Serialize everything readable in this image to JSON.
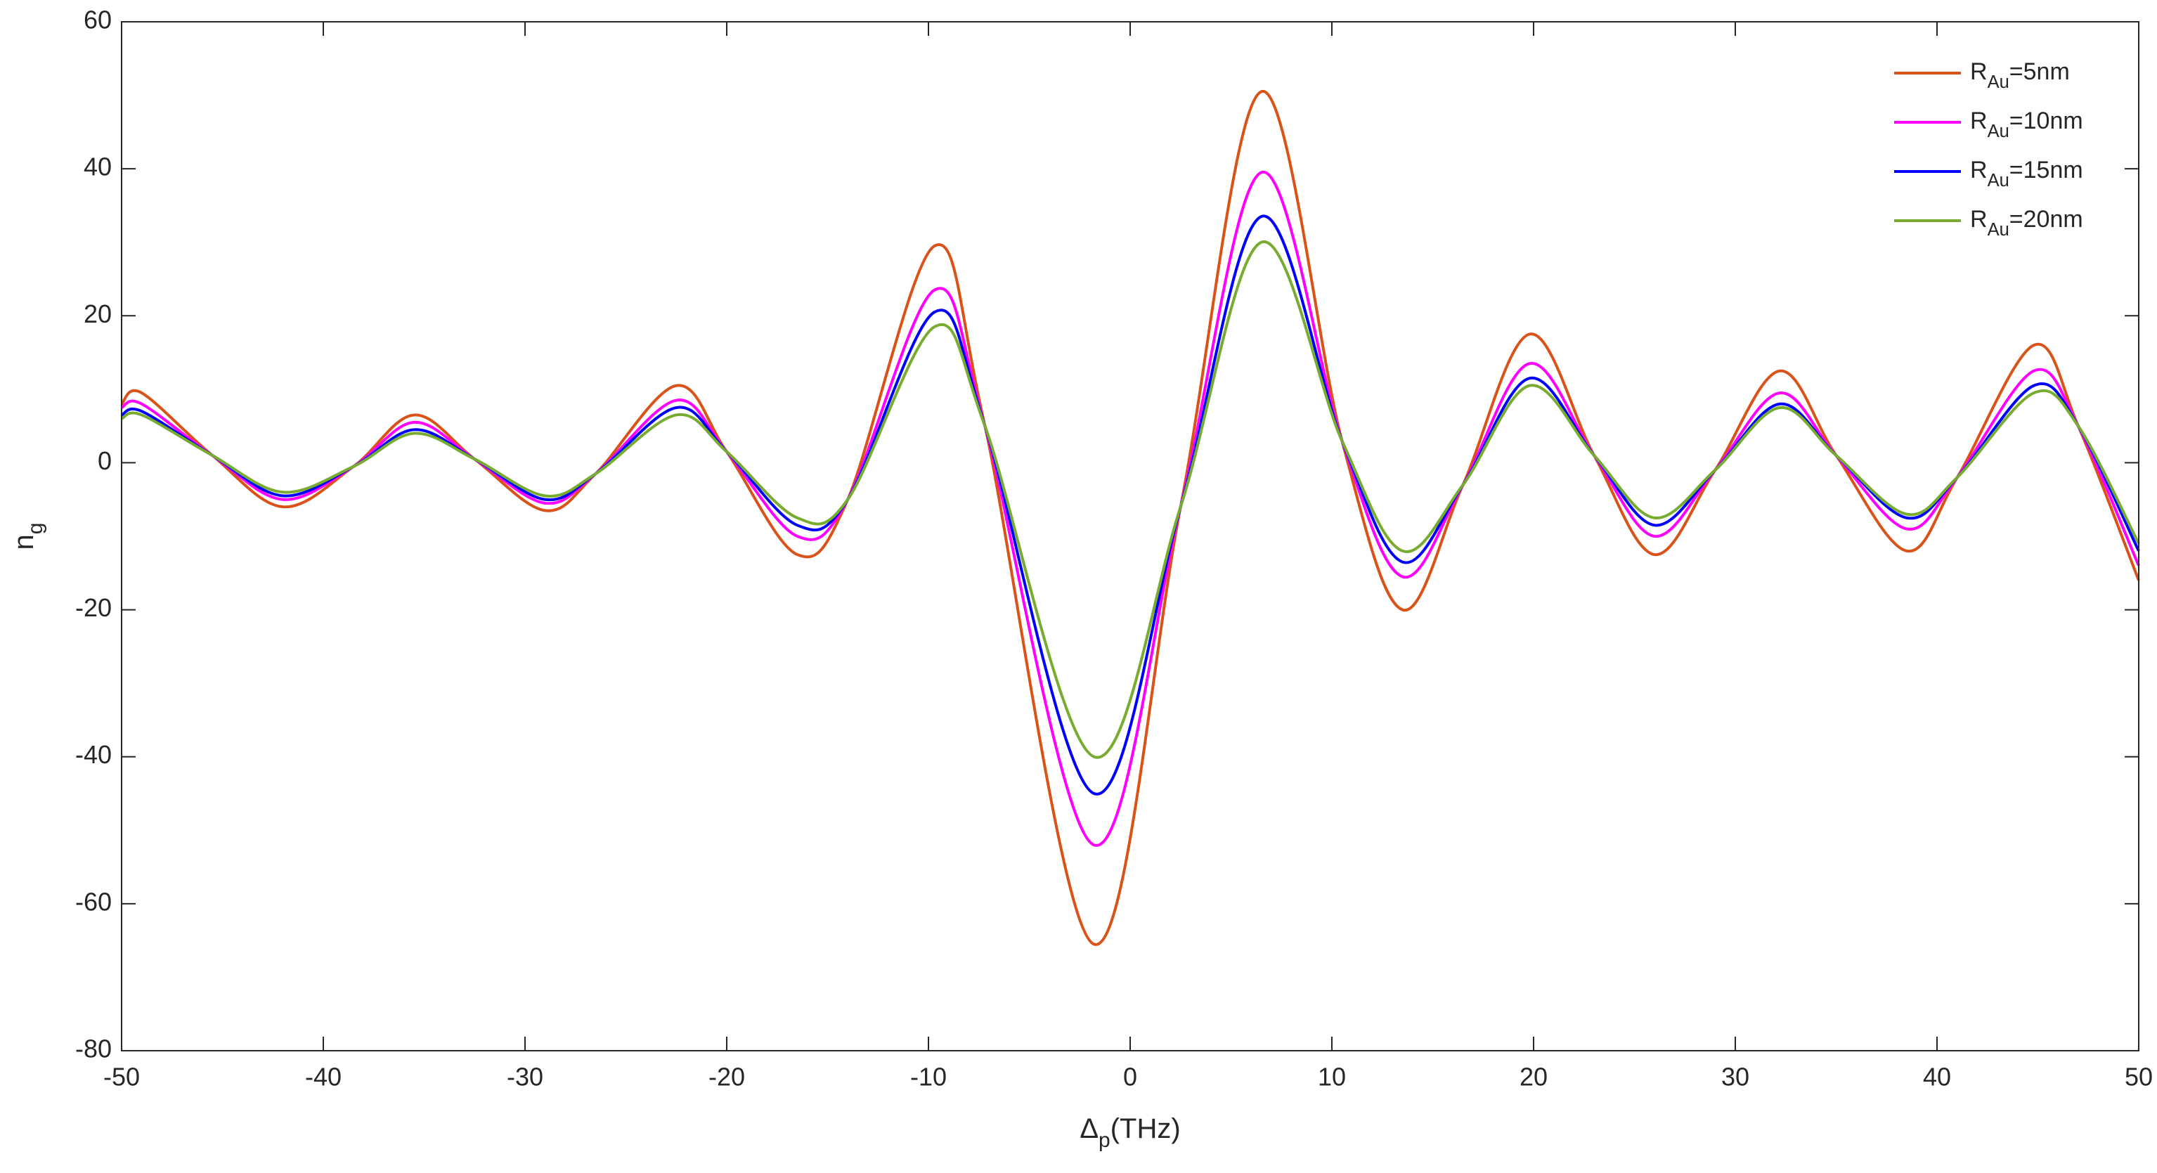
{
  "chart_data": {
    "type": "line",
    "xlabel": "Δp(THz)",
    "ylabel": "ng",
    "x": [
      -50,
      -49,
      -45.5,
      -42,
      -38.5,
      -35.5,
      -32.5,
      -29,
      -26.5,
      -22.5,
      -20,
      -16.5,
      -14,
      -9.7,
      -7.2,
      -1.8,
      2.5,
      6.5,
      10.5,
      13.5,
      16.5,
      19.8,
      23,
      26,
      29,
      32.2,
      35,
      38.5,
      41,
      44.8,
      47,
      50
    ],
    "series": [
      {
        "name": "RAu=5nm",
        "color": "#d95319",
        "values": [
          8,
          9.5,
          1,
          -6,
          -0.5,
          6.5,
          0.5,
          -6.5,
          -1.5,
          10.5,
          1.5,
          -12.5,
          -5,
          29.5,
          5,
          -65.5,
          -6,
          50.5,
          3,
          -20,
          -3,
          17.5,
          1,
          -12.5,
          -1,
          12.5,
          1,
          -12,
          -2,
          16,
          5,
          -16
        ]
      },
      {
        "name": "RAu=10nm",
        "color": "#ff00ff",
        "values": [
          7.5,
          8,
          1,
          -5,
          -0.5,
          5.5,
          0.5,
          -5.5,
          -1.5,
          8.5,
          1.5,
          -10,
          -5,
          23.5,
          5,
          -52,
          -6,
          39.5,
          3,
          -15.5,
          -3,
          13.5,
          1,
          -10,
          -1,
          9.5,
          1,
          -9,
          -2,
          12.5,
          5,
          -14
        ]
      },
      {
        "name": "RAu=15nm",
        "color": "#0000ff",
        "values": [
          6.5,
          7,
          1,
          -4.5,
          -0.5,
          4.5,
          0.5,
          -5,
          -1.5,
          7.5,
          1.5,
          -8.5,
          -5,
          20.5,
          5,
          -45,
          -6,
          33.5,
          3,
          -13.5,
          -3,
          11.5,
          1,
          -8.5,
          -1,
          8,
          1,
          -7.5,
          -2,
          10.5,
          5,
          -12
        ]
      },
      {
        "name": "RAu=20nm",
        "color": "#77ac30",
        "values": [
          6,
          6.5,
          1,
          -4,
          -0.5,
          4,
          0.5,
          -4.5,
          -1.5,
          6.5,
          1.5,
          -7.5,
          -5,
          18.5,
          5,
          -40,
          -6,
          30,
          3,
          -12,
          -3,
          10.5,
          1,
          -7.5,
          -1,
          7.5,
          1,
          -7,
          -2,
          9.5,
          5,
          -11
        ]
      }
    ],
    "xlim": [
      -50,
      50
    ],
    "xticks": [
      -50,
      -40,
      -30,
      -20,
      -10,
      0,
      10,
      20,
      30,
      40,
      50
    ],
    "ylim": [
      -80,
      60
    ],
    "yticks": [
      -80,
      -60,
      -40,
      -20,
      0,
      20,
      40,
      60
    ],
    "grid": false,
    "legend": "upper right"
  }
}
